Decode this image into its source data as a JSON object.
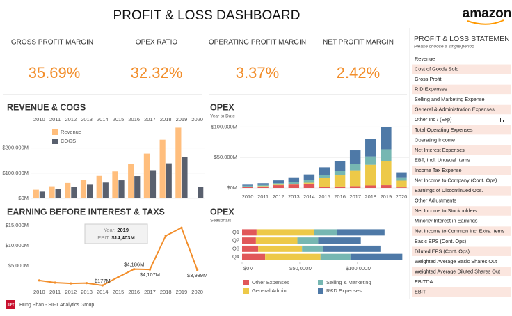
{
  "header": {
    "title": "PROFIT & LOSS DASHBOARD",
    "logo": "amazon"
  },
  "kpis": [
    {
      "label": "GROSS PROFIT MARGIN",
      "value": "35.69%"
    },
    {
      "label": "OPEX RATIO",
      "value": "32.32%"
    },
    {
      "label": "OPERATING PROFIT MARGIN",
      "value": "3.37%"
    },
    {
      "label": "NET PROFIT MARGIN",
      "value": "2.42%"
    }
  ],
  "chart_data": [
    {
      "type": "bar",
      "title": "REVENUE & COGS",
      "categories": [
        2010,
        2011,
        2012,
        2013,
        2014,
        2015,
        2016,
        2017,
        2018,
        2019,
        2020
      ],
      "series": [
        {
          "name": "Revenue",
          "color": "#ffbe7d",
          "values": [
            34204,
            48077,
            61093,
            74452,
            88988,
            107006,
            135987,
            177866,
            232887,
            280522,
            null
          ]
        },
        {
          "name": "COGS",
          "color": "#59606e",
          "values": [
            26561,
            37288,
            45971,
            54181,
            62752,
            71651,
            88265,
            111934,
            139156,
            165536,
            44257
          ]
        }
      ],
      "ylim": [
        0,
        290000
      ],
      "yticks": [
        {
          "value": 0,
          "label": "$0M"
        },
        {
          "value": 100000,
          "label": "$100,000M"
        },
        {
          "value": 200000,
          "label": "$200,000M"
        }
      ],
      "grid": true,
      "legend": "top-left"
    },
    {
      "type": "stacked_bar",
      "title": "OPEX",
      "subtitle": "Year to Date",
      "categories": [
        2010,
        2011,
        2012,
        2013,
        2014,
        2015,
        2016,
        2017,
        2018,
        2019,
        2020
      ],
      "series": [
        {
          "name": "Other Expenses",
          "color": "#e15759",
          "values": [
            1800,
            2500,
            4500,
            5500,
            7000,
            2000,
            2500,
            3000,
            4000,
            4500,
            1000
          ]
        },
        {
          "name": "General Admin",
          "color": "#edc948",
          "values": [
            500,
            700,
            900,
            1100,
            1500,
            14000,
            18000,
            26000,
            34000,
            40000,
            11000
          ]
        },
        {
          "name": "Selling & Marketing",
          "color": "#76b7b2",
          "values": [
            1300,
            1600,
            2400,
            3100,
            4300,
            5300,
            7200,
            10000,
            13800,
            18900,
            4300
          ]
        },
        {
          "name": "R&D Expenses",
          "color": "#4e79a7",
          "values": [
            1700,
            2900,
            4600,
            6600,
            9300,
            12500,
            16100,
            22600,
            28800,
            35900,
            9300
          ]
        }
      ],
      "ylim": [
        0,
        105000
      ],
      "yticks": [
        {
          "value": 0,
          "label": "$0M"
        },
        {
          "value": 50000,
          "label": "$50,000M"
        },
        {
          "value": 100000,
          "label": "$100,000M"
        }
      ],
      "grid": true
    },
    {
      "type": "line",
      "title": "EARNING BEFORE INTEREST & TAXS",
      "categories": [
        2010,
        2011,
        2012,
        2013,
        2014,
        2015,
        2016,
        2017,
        2018,
        2019,
        2020
      ],
      "values": [
        1406,
        862,
        676,
        745,
        177,
        2233,
        4186,
        4107,
        12421,
        14403,
        3989
      ],
      "value_labels": [
        null,
        null,
        null,
        null,
        "$177M",
        null,
        "$4,186M",
        "$4,107M",
        null,
        null,
        "$3,989M"
      ],
      "color": "#f28e2b",
      "ylim": [
        0,
        16000
      ],
      "yticks": [
        {
          "value": 5000,
          "label": "$5,000M"
        },
        {
          "value": 10000,
          "label": "$10,000M"
        },
        {
          "value": 15000,
          "label": "$15,000M"
        }
      ],
      "tooltip": [
        {
          "label": "Year:",
          "value": "2019"
        },
        {
          "label": "EBIT:",
          "value": "$14,403M"
        }
      ]
    },
    {
      "type": "stacked_barh",
      "title": "OPEX",
      "subtitle": "Seasonals",
      "categories": [
        "Q1",
        "Q2",
        "Q3",
        "Q4"
      ],
      "series": [
        {
          "name": "Other Expenses",
          "color": "#e15759",
          "values": [
            12600,
            12000,
            14000,
            20000
          ]
        },
        {
          "name": "General Admin",
          "color": "#edc948",
          "values": [
            50000,
            36000,
            38000,
            48000
          ]
        },
        {
          "name": "Selling & Marketing",
          "color": "#76b7b2",
          "values": [
            20000,
            18000,
            18000,
            26000
          ]
        },
        {
          "name": "R&D Expenses",
          "color": "#4e79a7",
          "values": [
            41000,
            37000,
            50000,
            45000
          ]
        }
      ],
      "xlim": [
        0,
        140000
      ],
      "xticks": [
        {
          "value": 0,
          "label": "$0M"
        },
        {
          "value": 50000,
          "label": "$50,000M"
        },
        {
          "value": 100000,
          "label": "$100,000M"
        }
      ],
      "legend": "bottom"
    }
  ],
  "panel": {
    "title": "PROFIT & LOSS STATEMEN in All",
    "subtitle": "Please choose a single period",
    "items": [
      "Revenue",
      "Cost of Goods Sold",
      "Gross Profit",
      "R D Expenses",
      "Selling and Marketing Expense",
      "General & Administration Expenses",
      "Other Inc / (Exp)",
      "Total Operating Expenses",
      "Operating Income",
      "Net Interest Expenses",
      "EBT, Incl. Unusual Items",
      "Income Tax Expense",
      "Net Income to Company (Cont. Ops)",
      "Earnings of Discontinued Ops.",
      "Other Adjustments",
      "Net Income to Stockholders",
      "Minority Interest in Earnings",
      "Net Income to Common Incl Extra Items",
      "Basic EPS (Cont. Ops)",
      "Diluted EPS (Cont. Ops)",
      "Weighted Average Basic Shares Out",
      "Weighted Average Diluted Shares Out",
      "EBITDA",
      "EBIT"
    ]
  },
  "footer": {
    "logo": "SIFT",
    "text": "Hung Phan - SIFT Analytics Group"
  }
}
